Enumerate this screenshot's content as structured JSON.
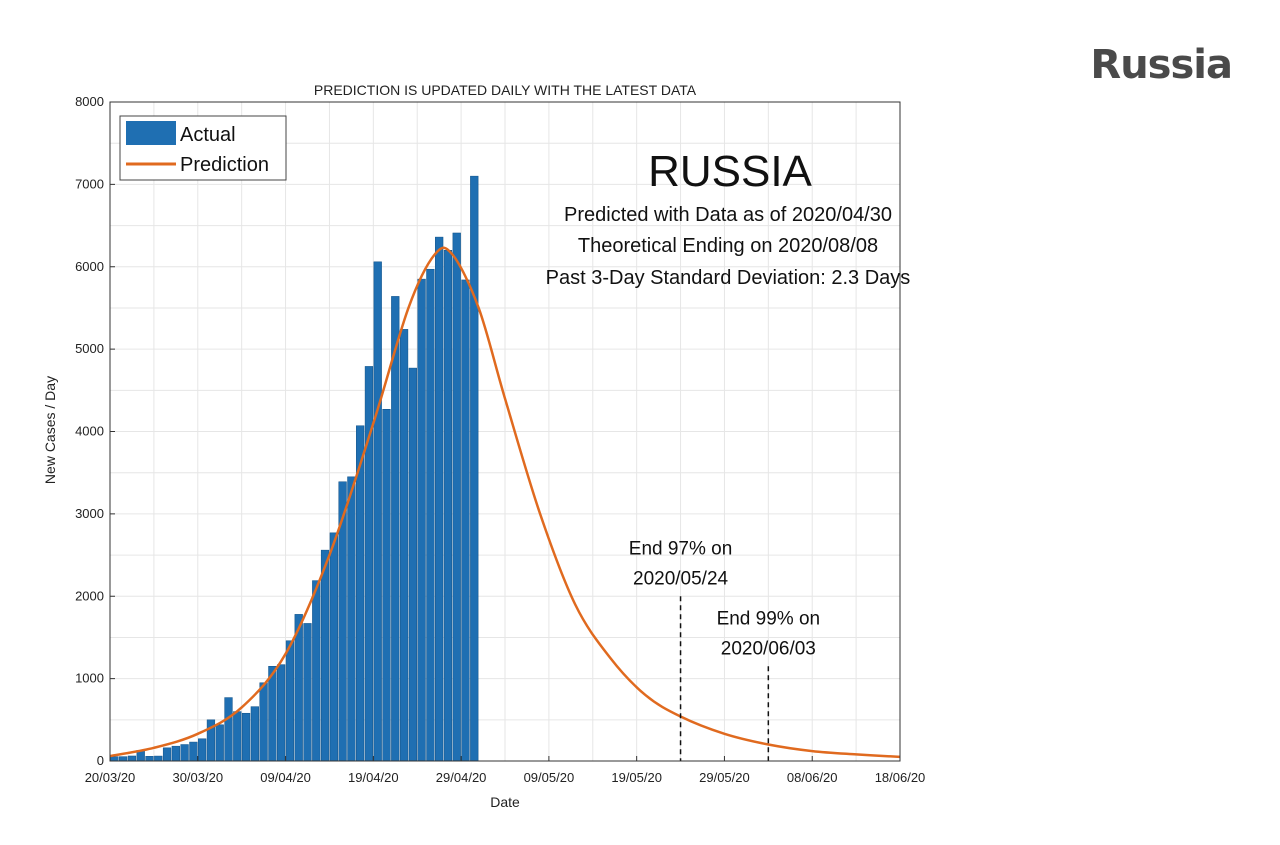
{
  "slide_title": "Russia",
  "chart_data": {
    "type": "bar",
    "title": "PREDICTION IS UPDATED DAILY WITH THE LATEST DATA",
    "xlabel": "Date",
    "ylabel": "New Cases / Day",
    "ylim": [
      0,
      8000
    ],
    "yticks": [
      0,
      1000,
      2000,
      3000,
      4000,
      5000,
      6000,
      7000,
      8000
    ],
    "xlim": [
      "2020-03-20",
      "2020-06-18"
    ],
    "xticks": [
      "20/03/20",
      "30/03/20",
      "09/04/20",
      "19/04/20",
      "29/04/20",
      "09/05/20",
      "19/05/20",
      "29/05/20",
      "08/06/20",
      "18/06/20"
    ],
    "grid": true,
    "legend_position": "top-left",
    "country_label": "RUSSIA",
    "info_lines": [
      "Predicted with Data as of 2020/04/30",
      "Theoretical Ending on 2020/08/08",
      "Past 3-Day Standard Deviation: 2.3 Days"
    ],
    "series": [
      {
        "name": "Actual",
        "type": "bar",
        "color": "#1f6fb2",
        "x": [
          "2020-03-20",
          "2020-03-21",
          "2020-03-22",
          "2020-03-23",
          "2020-03-24",
          "2020-03-25",
          "2020-03-26",
          "2020-03-27",
          "2020-03-28",
          "2020-03-29",
          "2020-03-30",
          "2020-03-31",
          "2020-04-01",
          "2020-04-02",
          "2020-04-03",
          "2020-04-04",
          "2020-04-05",
          "2020-04-06",
          "2020-04-07",
          "2020-04-08",
          "2020-04-09",
          "2020-04-10",
          "2020-04-11",
          "2020-04-12",
          "2020-04-13",
          "2020-04-14",
          "2020-04-15",
          "2020-04-16",
          "2020-04-17",
          "2020-04-18",
          "2020-04-19",
          "2020-04-20",
          "2020-04-21",
          "2020-04-22",
          "2020-04-23",
          "2020-04-24",
          "2020-04-25",
          "2020-04-26",
          "2020-04-27",
          "2020-04-28",
          "2020-04-29",
          "2020-04-30"
        ],
        "values": [
          53,
          53,
          61,
          130,
          57,
          60,
          160,
          180,
          200,
          230,
          270,
          500,
          440,
          770,
          600,
          580,
          660,
          950,
          1150,
          1170,
          1460,
          1780,
          1670,
          2190,
          2560,
          2770,
          3390,
          3450,
          4070,
          4790,
          6060,
          4270,
          5640,
          5240,
          4770,
          5850,
          5970,
          6360,
          6200,
          6410,
          5840,
          7100
        ]
      },
      {
        "name": "Prediction",
        "type": "line",
        "color": "#e06a1f",
        "x": [
          "2020-03-20",
          "2020-03-25",
          "2020-03-30",
          "2020-04-04",
          "2020-04-09",
          "2020-04-14",
          "2020-04-19",
          "2020-04-23",
          "2020-04-26",
          "2020-04-28",
          "2020-05-01",
          "2020-05-04",
          "2020-05-08",
          "2020-05-12",
          "2020-05-16",
          "2020-05-20",
          "2020-05-24",
          "2020-05-29",
          "2020-06-03",
          "2020-06-08",
          "2020-06-13",
          "2020-06-18"
        ],
        "values": [
          60,
          160,
          330,
          650,
          1300,
          2500,
          4100,
          5500,
          6150,
          6150,
          5500,
          4400,
          3000,
          1900,
          1250,
          800,
          540,
          330,
          200,
          120,
          80,
          50
        ]
      }
    ],
    "annotations": [
      {
        "date": "2020-05-24",
        "label_line1": "End 97% on",
        "label_line2": "2020/05/24",
        "marker_top": 2000
      },
      {
        "date": "2020-06-03",
        "label_line1": "End 99% on",
        "label_line2": "2020/06/03",
        "marker_top": 1150
      }
    ]
  }
}
